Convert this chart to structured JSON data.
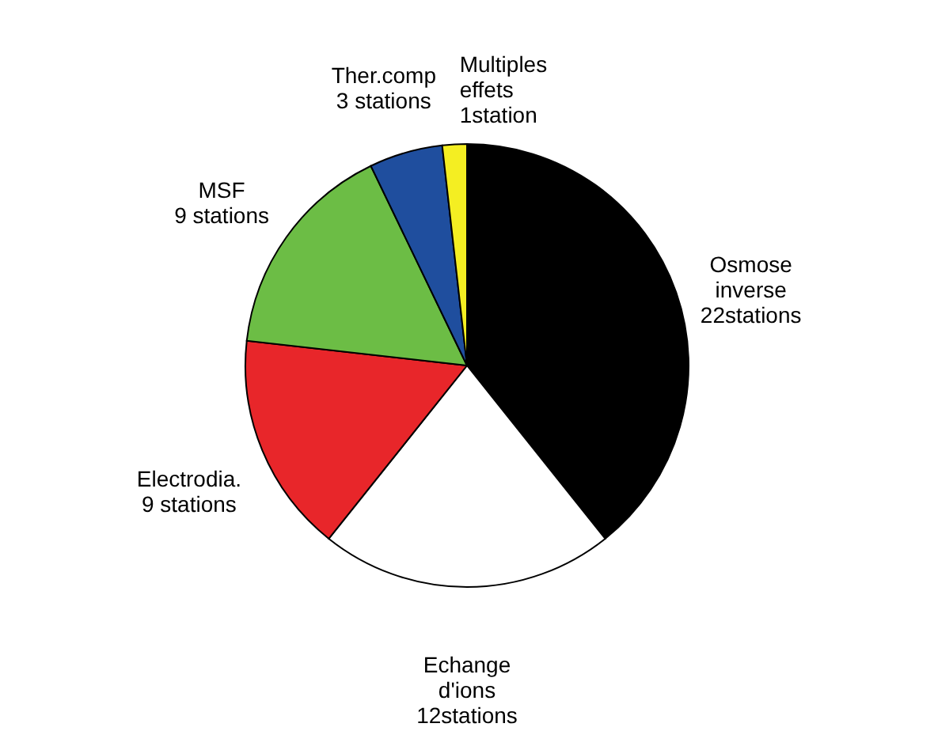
{
  "chart_data": {
    "type": "pie",
    "categories": [
      "Osmose inverse",
      "Echange d'ions",
      "Electrodia.",
      "MSF",
      "Ther.comp",
      "Multiples effets"
    ],
    "values": [
      22,
      12,
      9,
      9,
      3,
      1
    ],
    "value_labels": [
      "22stations",
      "12stations",
      "9 stations",
      "9 stations",
      "3 stations",
      "1station"
    ],
    "colors": [
      "#000000",
      "#ffffff",
      "#e8262a",
      "#6cbd45",
      "#1f4e9e",
      "#f4ee22"
    ],
    "legend": false
  }
}
